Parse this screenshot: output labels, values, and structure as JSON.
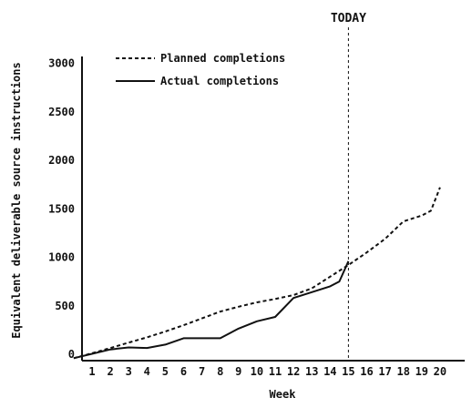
{
  "chart_data": {
    "type": "line",
    "title": "",
    "xlabel": "Week",
    "ylabel": "Equivalent deliverable source instructions",
    "x": [
      0,
      1,
      2,
      3,
      4,
      5,
      6,
      7,
      8,
      9,
      10,
      11,
      12,
      13,
      14,
      15,
      16,
      17,
      18,
      19,
      20
    ],
    "xlim": [
      0,
      20.7
    ],
    "ylim": [
      -50,
      3150
    ],
    "x_ticks": [
      1,
      2,
      3,
      4,
      5,
      6,
      7,
      8,
      9,
      10,
      11,
      12,
      13,
      14,
      15,
      16,
      17,
      18,
      19,
      20
    ],
    "y_ticks": [
      0,
      500,
      1000,
      1500,
      2000,
      2500,
      3000
    ],
    "series": [
      {
        "name": "Planned completions",
        "style": "dashed",
        "color": "#111111",
        "points": [
          [
            0,
            -40
          ],
          [
            1,
            10
          ],
          [
            2,
            65
          ],
          [
            3,
            120
          ],
          [
            4,
            175
          ],
          [
            5,
            235
          ],
          [
            6,
            300
          ],
          [
            7,
            370
          ],
          [
            8,
            440
          ],
          [
            9,
            490
          ],
          [
            10,
            535
          ],
          [
            11,
            570
          ],
          [
            12,
            610
          ],
          [
            13,
            680
          ],
          [
            14,
            800
          ],
          [
            15,
            920
          ],
          [
            16,
            1050
          ],
          [
            17,
            1190
          ],
          [
            18,
            1370
          ],
          [
            19,
            1430
          ],
          [
            19.5,
            1480
          ],
          [
            20,
            1720
          ]
        ]
      },
      {
        "name": "Actual completions",
        "style": "solid",
        "color": "#111111",
        "points": [
          [
            0,
            -40
          ],
          [
            1,
            5
          ],
          [
            2,
            50
          ],
          [
            3,
            70
          ],
          [
            4,
            65
          ],
          [
            5,
            100
          ],
          [
            6,
            165
          ],
          [
            7,
            165
          ],
          [
            8,
            165
          ],
          [
            9,
            265
          ],
          [
            10,
            340
          ],
          [
            11,
            385
          ],
          [
            12,
            580
          ],
          [
            13,
            640
          ],
          [
            14,
            700
          ],
          [
            14.5,
            750
          ],
          [
            15,
            960
          ]
        ]
      }
    ],
    "today_week": 15,
    "annotation": "TODAY",
    "legend_position": "top-left",
    "grid": false
  }
}
